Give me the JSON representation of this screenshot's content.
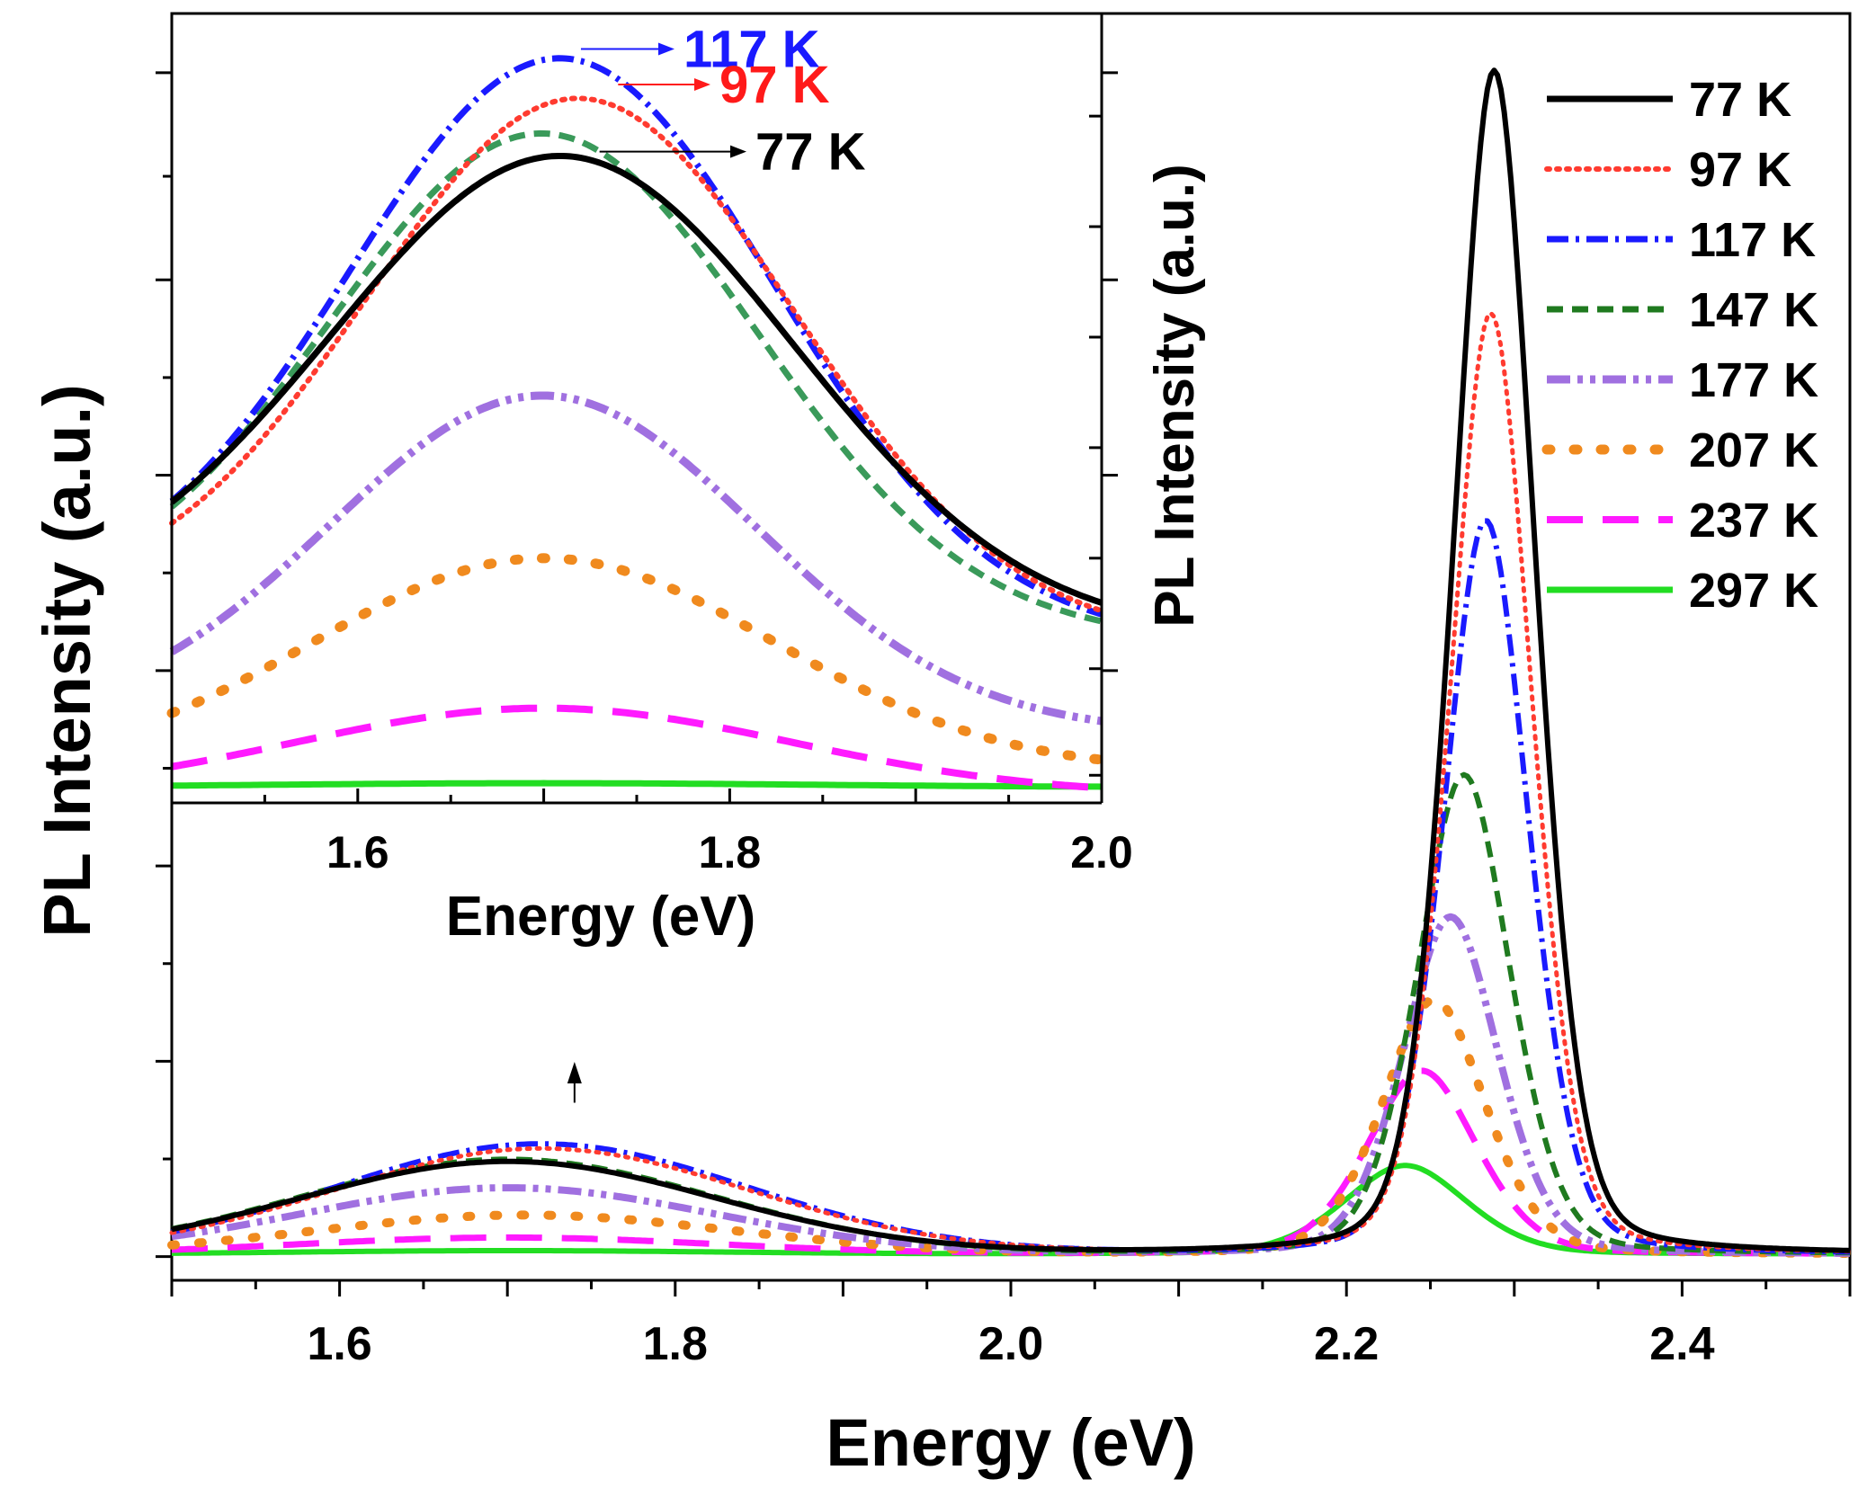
{
  "chart_data": [
    {
      "id": "main",
      "type": "line",
      "title": "",
      "xlabel": "Energy (eV)",
      "ylabel": "PL Intensity (a.u.)",
      "xlim": [
        1.5,
        2.5
      ],
      "ylim": [
        -0.02,
        1.05
      ],
      "xticks": [
        1.6,
        1.8,
        2.0,
        2.2,
        2.4
      ],
      "xtick_labels": [
        "1.6",
        "1.8",
        "2.0",
        "2.2",
        "2.4"
      ],
      "yticks": [
        0,
        0.165,
        0.33,
        0.495,
        0.66,
        0.825,
        1.0
      ],
      "ytick_labels_shown": false,
      "grid": false,
      "legend_position": "top-right",
      "peak_arrow": {
        "x": 1.74,
        "y_from": 0.13,
        "y_to": 0.16
      },
      "series": [
        {
          "name": "77 K",
          "color": "#000000",
          "dash": "solid",
          "x0": 1.5,
          "x1": 2.5,
          "peak2": {
            "A": 1.0,
            "center": 2.288,
            "width": 0.024
          },
          "peak1": {
            "A": 0.078,
            "center": 1.7,
            "width": 0.12
          }
        },
        {
          "name": "97 K",
          "color": "#ff3b30",
          "dash": "dot",
          "x0": 1.5,
          "x1": 2.5,
          "peak2": {
            "A": 0.795,
            "center": 2.286,
            "width": 0.024
          },
          "peak1": {
            "A": 0.089,
            "center": 1.72,
            "width": 0.12
          }
        },
        {
          "name": "117 K",
          "color": "#1a1aff",
          "dash": "dashdot",
          "x0": 1.5,
          "x1": 2.5,
          "peak2": {
            "A": 0.62,
            "center": 2.283,
            "width": 0.025
          },
          "peak1": {
            "A": 0.093,
            "center": 1.72,
            "width": 0.12
          }
        },
        {
          "name": "147 K",
          "color": "#1f7a1f",
          "dash": "dash",
          "x0": 1.5,
          "x1": 2.5,
          "peak2": {
            "A": 0.405,
            "center": 2.27,
            "width": 0.027
          },
          "peak1": {
            "A": 0.08,
            "center": 1.7,
            "width": 0.12
          }
        },
        {
          "name": "177 K",
          "color": "#a070e0",
          "dash": "dashdotdot",
          "x0": 1.5,
          "x1": 2.5,
          "peak2": {
            "A": 0.285,
            "center": 2.262,
            "width": 0.028
          },
          "peak1": {
            "A": 0.056,
            "center": 1.7,
            "width": 0.12
          }
        },
        {
          "name": "207 K",
          "color": "#f08a1e",
          "dash": "bigdot",
          "x0": 1.5,
          "x1": 2.5,
          "peak2": {
            "A": 0.215,
            "center": 2.252,
            "width": 0.03
          },
          "peak1": {
            "A": 0.033,
            "center": 1.71,
            "width": 0.12
          }
        },
        {
          "name": "237 K",
          "color": "#ff1aff",
          "dash": "longdash",
          "x0": 1.5,
          "x1": 2.5,
          "peak2": {
            "A": 0.155,
            "center": 2.245,
            "width": 0.032
          },
          "peak1": {
            "A": 0.014,
            "center": 1.7,
            "width": 0.12
          }
        },
        {
          "name": "297 K",
          "color": "#22dd22",
          "dash": "solid",
          "x0": 1.5,
          "x1": 2.5,
          "peak2": {
            "A": 0.075,
            "center": 2.235,
            "width": 0.036
          },
          "peak1": {
            "A": 0.003,
            "center": 1.7,
            "width": 0.12
          }
        }
      ]
    },
    {
      "id": "inset",
      "type": "line",
      "title": "",
      "xlabel": "Energy (eV)",
      "ylabel": "",
      "xlim": [
        1.5,
        2.0
      ],
      "ylim": [
        0,
        0.1
      ],
      "xticks": [
        1.6,
        1.8,
        2.0
      ],
      "xtick_labels": [
        "1.6",
        "1.8",
        "2.0"
      ],
      "yticks": [
        0.0035,
        0.017,
        0.031,
        0.045,
        0.059,
        0.073,
        0.087
      ],
      "grid": false,
      "annotations": [
        {
          "text": "117 K",
          "color": "#1a1aff",
          "arrow_x": 1.72,
          "arrow_y": 0.0955
        },
        {
          "text": "97 K",
          "color": "#ff1a1a",
          "arrow_x": 1.74,
          "arrow_y": 0.091
        },
        {
          "text": "77 K",
          "color": "#000000",
          "arrow_x": 1.73,
          "arrow_y": 0.0825
        }
      ],
      "series": [
        {
          "name": "77 K",
          "color": "#000000",
          "dash": "solid",
          "base": 0.024,
          "A": 0.059,
          "center": 1.71,
          "width": 0.13,
          "slope": -0.005
        },
        {
          "name": "97 K",
          "color": "#ff3b30",
          "dash": "dot",
          "base": 0.025,
          "A": 0.066,
          "center": 1.72,
          "width": 0.12,
          "slope": -0.008
        },
        {
          "name": "117 K",
          "color": "#1a1aff",
          "dash": "dashdot",
          "base": 0.025,
          "A": 0.071,
          "center": 1.71,
          "width": 0.12,
          "slope": -0.008
        },
        {
          "name": "147 K",
          "color": "#3a9a5a",
          "dash": "dash",
          "base": 0.024,
          "A": 0.062,
          "center": 1.7,
          "width": 0.12,
          "slope": -0.006
        },
        {
          "name": "177 K",
          "color": "#a070e0",
          "dash": "dashdotdot",
          "base": 0.01,
          "A": 0.042,
          "center": 1.7,
          "width": 0.12,
          "slope": -0.002
        },
        {
          "name": "207 K",
          "color": "#f08a1e",
          "dash": "bigdot",
          "base": 0.004,
          "A": 0.027,
          "center": 1.7,
          "width": 0.13,
          "slope": 0.0
        },
        {
          "name": "237 K",
          "color": "#ff1aff",
          "dash": "longdash",
          "base": 0.001,
          "A": 0.011,
          "center": 1.7,
          "width": 0.14,
          "slope": 0.0
        },
        {
          "name": "297 K",
          "color": "#22dd22",
          "dash": "solid",
          "base": 0.002,
          "A": 0.0005,
          "center": 1.7,
          "width": 0.15,
          "slope": 0.0
        }
      ]
    }
  ]
}
